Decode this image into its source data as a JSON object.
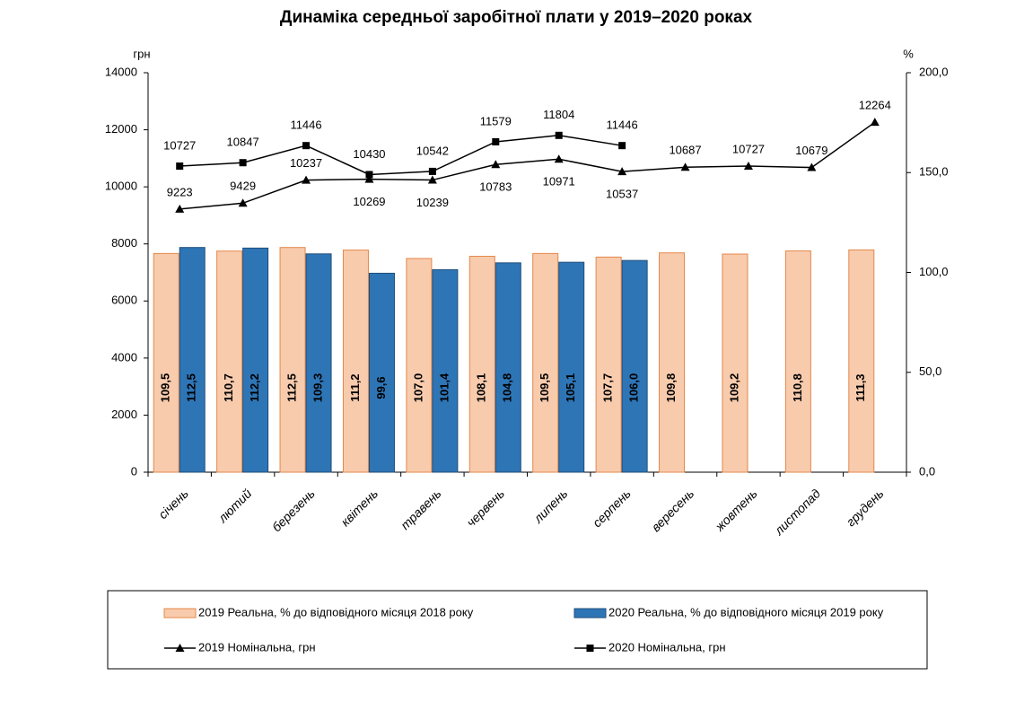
{
  "chart_data": {
    "type": "bar",
    "title": "Динаміка середньої заробітної плати у 2019–2020 роках",
    "y_label": "грн",
    "y2_label": "%",
    "categories": [
      "січень",
      "лютий",
      "березень",
      "квітень",
      "травень",
      "червень",
      "липень",
      "серпень",
      "вересень",
      "жовтень",
      "листопад",
      "грудень"
    ],
    "series": [
      {
        "name": "2019 Реальна, % до відповідного місяця 2018 року",
        "type": "bar",
        "axis": "y2",
        "color": "#f8cbad",
        "stroke": "#e4884c",
        "values": [
          109.5,
          110.7,
          112.5,
          111.2,
          107.0,
          108.1,
          109.5,
          107.7,
          109.8,
          109.2,
          110.8,
          111.3
        ],
        "value_labels": [
          "109,5",
          "110,7",
          "112,5",
          "111,2",
          "107,0",
          "108,1",
          "109,5",
          "107,7",
          "109,8",
          "109,2",
          "110,8",
          "111,3"
        ]
      },
      {
        "name": "2020 Реальна, % до відповідного місяця 2019 року",
        "type": "bar",
        "axis": "y2",
        "color": "#2e75b6",
        "stroke": "#1f4e79",
        "values": [
          112.5,
          112.2,
          109.3,
          99.6,
          101.4,
          104.8,
          105.1,
          106.0,
          null,
          null,
          null,
          null
        ],
        "value_labels": [
          "112,5",
          "112,2",
          "109,3",
          "99,6",
          "101,4",
          "104,8",
          "105,1",
          "106,0",
          null,
          null,
          null,
          null
        ]
      },
      {
        "name": "2019 Номінальна, грн",
        "type": "line",
        "marker": "triangle",
        "color": "#000000",
        "values": [
          9223,
          9429,
          10237,
          10269,
          10239,
          10783,
          10971,
          10537,
          10687,
          10727,
          10679,
          12264
        ]
      },
      {
        "name": "2020 Номінальна, грн",
        "type": "line",
        "marker": "square",
        "color": "#000000",
        "values": [
          10727,
          10847,
          11446,
          10430,
          10542,
          11579,
          11804,
          11446,
          null,
          null,
          null,
          null
        ]
      }
    ],
    "ylim": [
      0,
      14000
    ],
    "yticks": [
      0,
      2000,
      4000,
      6000,
      8000,
      10000,
      12000,
      14000
    ],
    "y2lim": [
      0,
      200
    ],
    "y2ticks": [
      {
        "value": 0,
        "label": "0,0"
      },
      {
        "value": 50,
        "label": "50,0"
      },
      {
        "value": 100,
        "label": "100,0"
      },
      {
        "value": 150,
        "label": "150,0"
      },
      {
        "value": 200,
        "label": "200,0"
      }
    ]
  }
}
